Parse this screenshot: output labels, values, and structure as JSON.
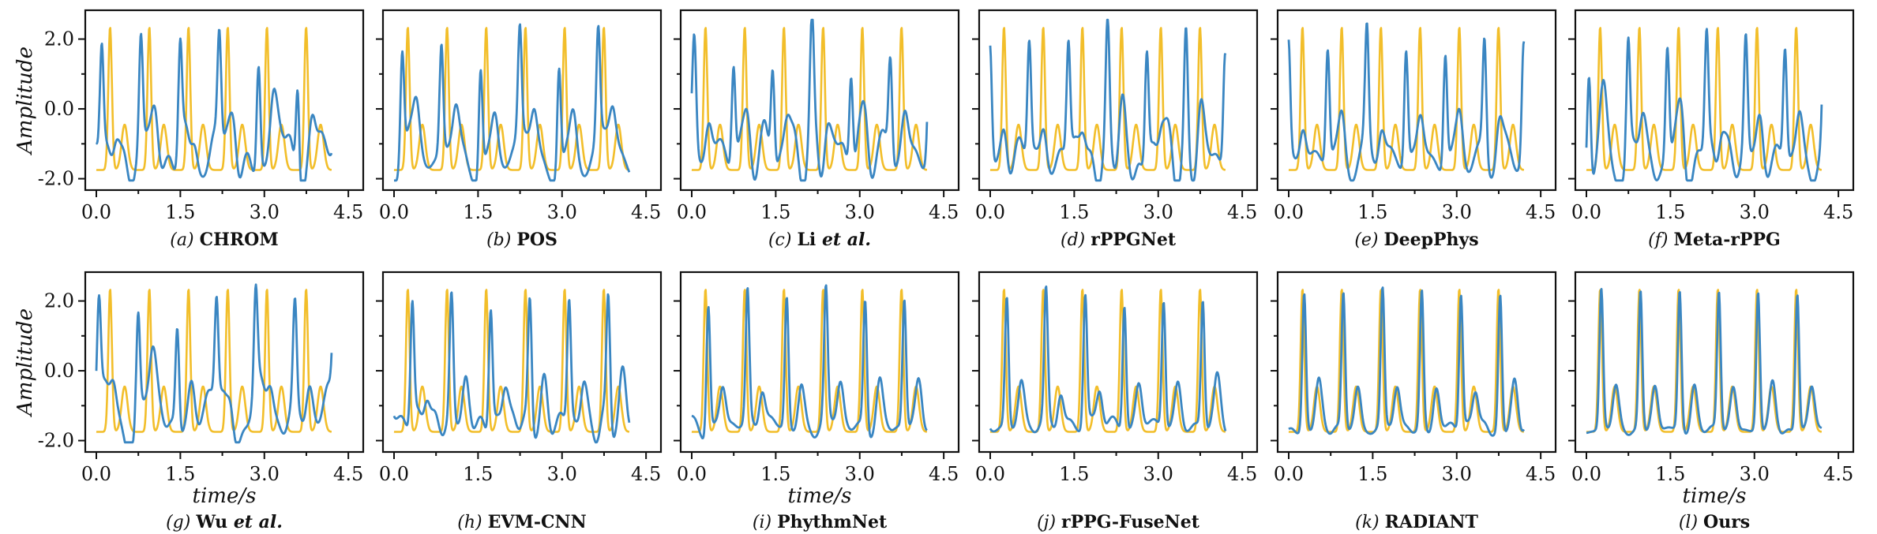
{
  "colors": {
    "ground_truth": "#F2BE2A",
    "prediction": "#3A86C2",
    "frame": "#111111"
  },
  "chart_data": [
    {
      "type": "line",
      "label": "(a)",
      "method": "CHROM",
      "method_suffix": "",
      "x_range": [
        0,
        4.2
      ],
      "ylim": [
        -2.1,
        2.6
      ],
      "ylabel": "Amplitude",
      "xlabel": "",
      "xticks": [
        "0.0",
        "1.5",
        "3.0",
        "4.5"
      ],
      "yticks": [
        "2.0",
        "0.0",
        "-2.0"
      ],
      "series": [
        {
          "role": "ground_truth",
          "amplitude": 1.0,
          "phase": 0.0,
          "noise": 0.0
        },
        {
          "role": "prediction",
          "amplitude": 0.75,
          "phase": 0.55,
          "noise": 0.55,
          "seed": 11
        }
      ]
    },
    {
      "type": "line",
      "label": "(b)",
      "method": "POS",
      "method_suffix": "",
      "x_range": [
        0,
        4.2
      ],
      "ylim": [
        -2.1,
        2.6
      ],
      "ylabel": "",
      "xlabel": "",
      "xticks": [
        "0.0",
        "1.5",
        "3.0",
        "4.5"
      ],
      "yticks": [],
      "series": [
        {
          "role": "ground_truth",
          "amplitude": 1.0,
          "phase": 0.0,
          "noise": 0.0
        },
        {
          "role": "prediction",
          "amplitude": 0.75,
          "phase": 0.6,
          "noise": 0.5,
          "seed": 22
        }
      ]
    },
    {
      "type": "line",
      "label": "(c)",
      "method": "Li ",
      "method_suffix": "et al.",
      "x_range": [
        0,
        4.2
      ],
      "ylim": [
        -2.1,
        2.6
      ],
      "ylabel": "",
      "xlabel": "",
      "xticks": [
        "0.0",
        "1.5",
        "3.0",
        "4.5"
      ],
      "yticks": [],
      "series": [
        {
          "role": "ground_truth",
          "amplitude": 1.0,
          "phase": 0.0,
          "noise": 0.0
        },
        {
          "role": "prediction",
          "amplitude": 0.7,
          "phase": 0.5,
          "noise": 0.5,
          "seed": 33
        }
      ]
    },
    {
      "type": "line",
      "label": "(d)",
      "method": "rPPGNet",
      "method_suffix": "",
      "x_range": [
        0,
        4.2
      ],
      "ylim": [
        -2.1,
        2.6
      ],
      "ylabel": "",
      "xlabel": "",
      "xticks": [
        "0.0",
        "1.5",
        "3.0",
        "4.5"
      ],
      "yticks": [],
      "series": [
        {
          "role": "ground_truth",
          "amplitude": 1.0,
          "phase": 0.0,
          "noise": 0.0
        },
        {
          "role": "prediction",
          "amplitude": 0.8,
          "phase": 0.45,
          "noise": 0.45,
          "seed": 44
        }
      ]
    },
    {
      "type": "line",
      "label": "(e)",
      "method": "DeepPhys",
      "method_suffix": "",
      "x_range": [
        0,
        4.2
      ],
      "ylim": [
        -2.1,
        2.6
      ],
      "ylabel": "",
      "xlabel": "",
      "xticks": [
        "0.0",
        "1.5",
        "3.0",
        "4.5"
      ],
      "yticks": [],
      "series": [
        {
          "role": "ground_truth",
          "amplitude": 1.0,
          "phase": 0.0,
          "noise": 0.0
        },
        {
          "role": "prediction",
          "amplitude": 0.8,
          "phase": 0.45,
          "noise": 0.45,
          "seed": 55
        }
      ]
    },
    {
      "type": "line",
      "label": "(f)",
      "method": "Meta-rPPG",
      "method_suffix": "",
      "x_range": [
        0,
        4.2
      ],
      "ylim": [
        -2.1,
        2.6
      ],
      "ylabel": "",
      "xlabel": "",
      "xticks": [
        "0.0",
        "1.5",
        "3.0",
        "4.5"
      ],
      "yticks": [],
      "series": [
        {
          "role": "ground_truth",
          "amplitude": 1.0,
          "phase": 0.0,
          "noise": 0.0
        },
        {
          "role": "prediction",
          "amplitude": 0.8,
          "phase": 0.5,
          "noise": 0.5,
          "seed": 66
        }
      ]
    },
    {
      "type": "line",
      "label": "(g)",
      "method": "Wu ",
      "method_suffix": "et al.",
      "x_range": [
        0,
        4.2
      ],
      "ylim": [
        -2.1,
        2.6
      ],
      "ylabel": "Amplitude",
      "xlabel": "time/s",
      "xticks": [
        "0.0",
        "1.5",
        "3.0",
        "4.5"
      ],
      "yticks": [
        "2.0",
        "0.0",
        "-2.0"
      ],
      "series": [
        {
          "role": "ground_truth",
          "amplitude": 1.0,
          "phase": 0.0,
          "noise": 0.0
        },
        {
          "role": "prediction",
          "amplitude": 0.7,
          "phase": 0.5,
          "noise": 0.45,
          "seed": 77
        }
      ]
    },
    {
      "type": "line",
      "label": "(h)",
      "method": "EVM-CNN",
      "method_suffix": "",
      "x_range": [
        0,
        4.2
      ],
      "ylim": [
        -2.1,
        2.6
      ],
      "ylabel": "",
      "xlabel": "",
      "xticks": [
        "0.0",
        "1.5",
        "3.0",
        "4.5"
      ],
      "yticks": [],
      "series": [
        {
          "role": "ground_truth",
          "amplitude": 1.0,
          "phase": 0.0,
          "noise": 0.0
        },
        {
          "role": "prediction",
          "amplitude": 0.85,
          "phase": 0.08,
          "noise": 0.25,
          "seed": 88
        }
      ]
    },
    {
      "type": "line",
      "label": "(i)",
      "method": "PhythmNet",
      "method_suffix": "",
      "x_range": [
        0,
        4.2
      ],
      "ylim": [
        -2.1,
        2.6
      ],
      "ylabel": "",
      "xlabel": "time/s",
      "xticks": [
        "0.0",
        "1.5",
        "3.0",
        "4.5"
      ],
      "yticks": [],
      "series": [
        {
          "role": "ground_truth",
          "amplitude": 1.0,
          "phase": 0.0,
          "noise": 0.0
        },
        {
          "role": "prediction",
          "amplitude": 0.9,
          "phase": 0.05,
          "noise": 0.18,
          "seed": 99
        }
      ]
    },
    {
      "type": "line",
      "label": "(j)",
      "method": "rPPG-FuseNet",
      "method_suffix": "",
      "x_range": [
        0,
        4.2
      ],
      "ylim": [
        -2.1,
        2.6
      ],
      "ylabel": "",
      "xlabel": "",
      "xticks": [
        "0.0",
        "1.5",
        "3.0",
        "4.5"
      ],
      "yticks": [],
      "series": [
        {
          "role": "ground_truth",
          "amplitude": 1.0,
          "phase": 0.0,
          "noise": 0.0
        },
        {
          "role": "prediction",
          "amplitude": 0.9,
          "phase": 0.05,
          "noise": 0.18,
          "seed": 111
        }
      ]
    },
    {
      "type": "line",
      "label": "(k)",
      "method": "RADIANT",
      "method_suffix": "",
      "x_range": [
        0,
        4.2
      ],
      "ylim": [
        -2.1,
        2.6
      ],
      "ylabel": "",
      "xlabel": "",
      "xticks": [
        "0.0",
        "1.5",
        "3.0",
        "4.5"
      ],
      "yticks": [],
      "series": [
        {
          "role": "ground_truth",
          "amplitude": 1.0,
          "phase": 0.0,
          "noise": 0.0
        },
        {
          "role": "prediction",
          "amplitude": 0.95,
          "phase": 0.03,
          "noise": 0.1,
          "seed": 122
        }
      ]
    },
    {
      "type": "line",
      "label": "(l)",
      "method": "Ours",
      "method_suffix": "",
      "x_range": [
        0,
        4.2
      ],
      "ylim": [
        -2.1,
        2.6
      ],
      "ylabel": "",
      "xlabel": "time/s",
      "xticks": [
        "0.0",
        "1.5",
        "3.0",
        "4.5"
      ],
      "yticks": [],
      "series": [
        {
          "role": "ground_truth",
          "amplitude": 1.0,
          "phase": 0.0,
          "noise": 0.0
        },
        {
          "role": "prediction",
          "amplitude": 0.97,
          "phase": 0.02,
          "noise": 0.06,
          "seed": 133
        }
      ]
    }
  ]
}
